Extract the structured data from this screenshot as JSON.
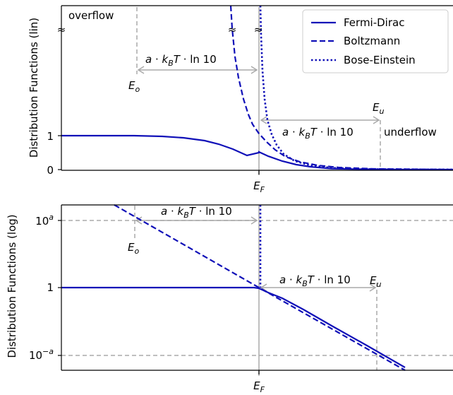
{
  "chart_data": [
    {
      "type": "line",
      "ylabel": "Distribution Functions (lin)",
      "xlabel": "",
      "x_tick_label": "E_F",
      "y_ticks": [
        0,
        1
      ],
      "legend": {
        "placement": "top-right",
        "entries": [
          "Fermi-Dirac",
          "Boltzmann",
          "Bose-Einstein"
        ]
      },
      "axis_break_symbol": "≈",
      "series": [
        {
          "name": "Fermi-Dirac",
          "style": "solid",
          "x": [
            -4.0,
            -2.5,
            -1.5,
            -0.8,
            -0.4,
            0.0,
            0.4,
            0.8,
            1.5,
            2.5,
            3.5
          ],
          "y": [
            0.998,
            0.99,
            0.95,
            0.84,
            0.7,
            0.5,
            0.3,
            0.16,
            0.05,
            0.01,
            0.002
          ]
        },
        {
          "name": "Boltzmann",
          "style": "dashed",
          "x": [
            -0.9,
            -0.6,
            -0.3,
            0.0,
            0.3,
            0.6,
            1.0,
            1.5,
            2.5,
            3.5
          ],
          "y": [
            2.46,
            1.82,
            1.35,
            1.0,
            0.74,
            0.55,
            0.37,
            0.22,
            0.08,
            0.03
          ]
        },
        {
          "name": "Bose-Einstein",
          "style": "dotted",
          "x": [
            0.02,
            0.1,
            0.2,
            0.35,
            0.5,
            0.8,
            1.2,
            2.0,
            3.5
          ],
          "y": [
            2.6,
            2.0,
            1.65,
            1.25,
            0.95,
            0.57,
            0.3,
            0.12,
            0.03
          ]
        }
      ],
      "annotations": [
        {
          "text": "overflow"
        },
        {
          "text": "underflow"
        },
        {
          "text": "a · k_BT · ln 10",
          "between": [
            "E_o",
            "E_F"
          ]
        },
        {
          "text": "a · k_BT · ln 10",
          "between": [
            "E_F",
            "E_u"
          ]
        },
        {
          "text": "E_o"
        },
        {
          "text": "E_u"
        }
      ]
    },
    {
      "type": "line",
      "ylabel": "Distribution Functions (log)",
      "xlabel": "",
      "x_tick_label": "E_F",
      "y_ticks": [
        "10^a",
        "1",
        "10^-a"
      ],
      "series": [
        {
          "name": "Fermi-Dirac",
          "style": "solid",
          "x": [
            -3.8,
            -2.0,
            -0.5,
            0.0,
            0.5,
            2.0,
            3.0
          ],
          "y_log_a": [
            0.0,
            0.0,
            0.0,
            0.0,
            -0.18,
            -0.68,
            -1.06
          ]
        },
        {
          "name": "Boltzmann",
          "style": "dashed",
          "x": [
            -3.0,
            -1.5,
            0.0,
            1.5,
            3.0
          ],
          "y_log_a": [
            1.12,
            0.56,
            0.0,
            -0.56,
            -1.12
          ]
        },
        {
          "name": "Bose-Einstein",
          "style": "dotted",
          "x": [
            0.0,
            0.0
          ],
          "y_log_a": [
            0.0,
            1.3
          ]
        }
      ],
      "annotations": [
        {
          "text": "a · k_BT · ln 10",
          "between": [
            "E_o",
            "E_F"
          ]
        },
        {
          "text": "a · k_BT · ln 10",
          "between": [
            "E_F",
            "E_u"
          ]
        },
        {
          "text": "E_o"
        },
        {
          "text": "E_u"
        }
      ]
    }
  ]
}
